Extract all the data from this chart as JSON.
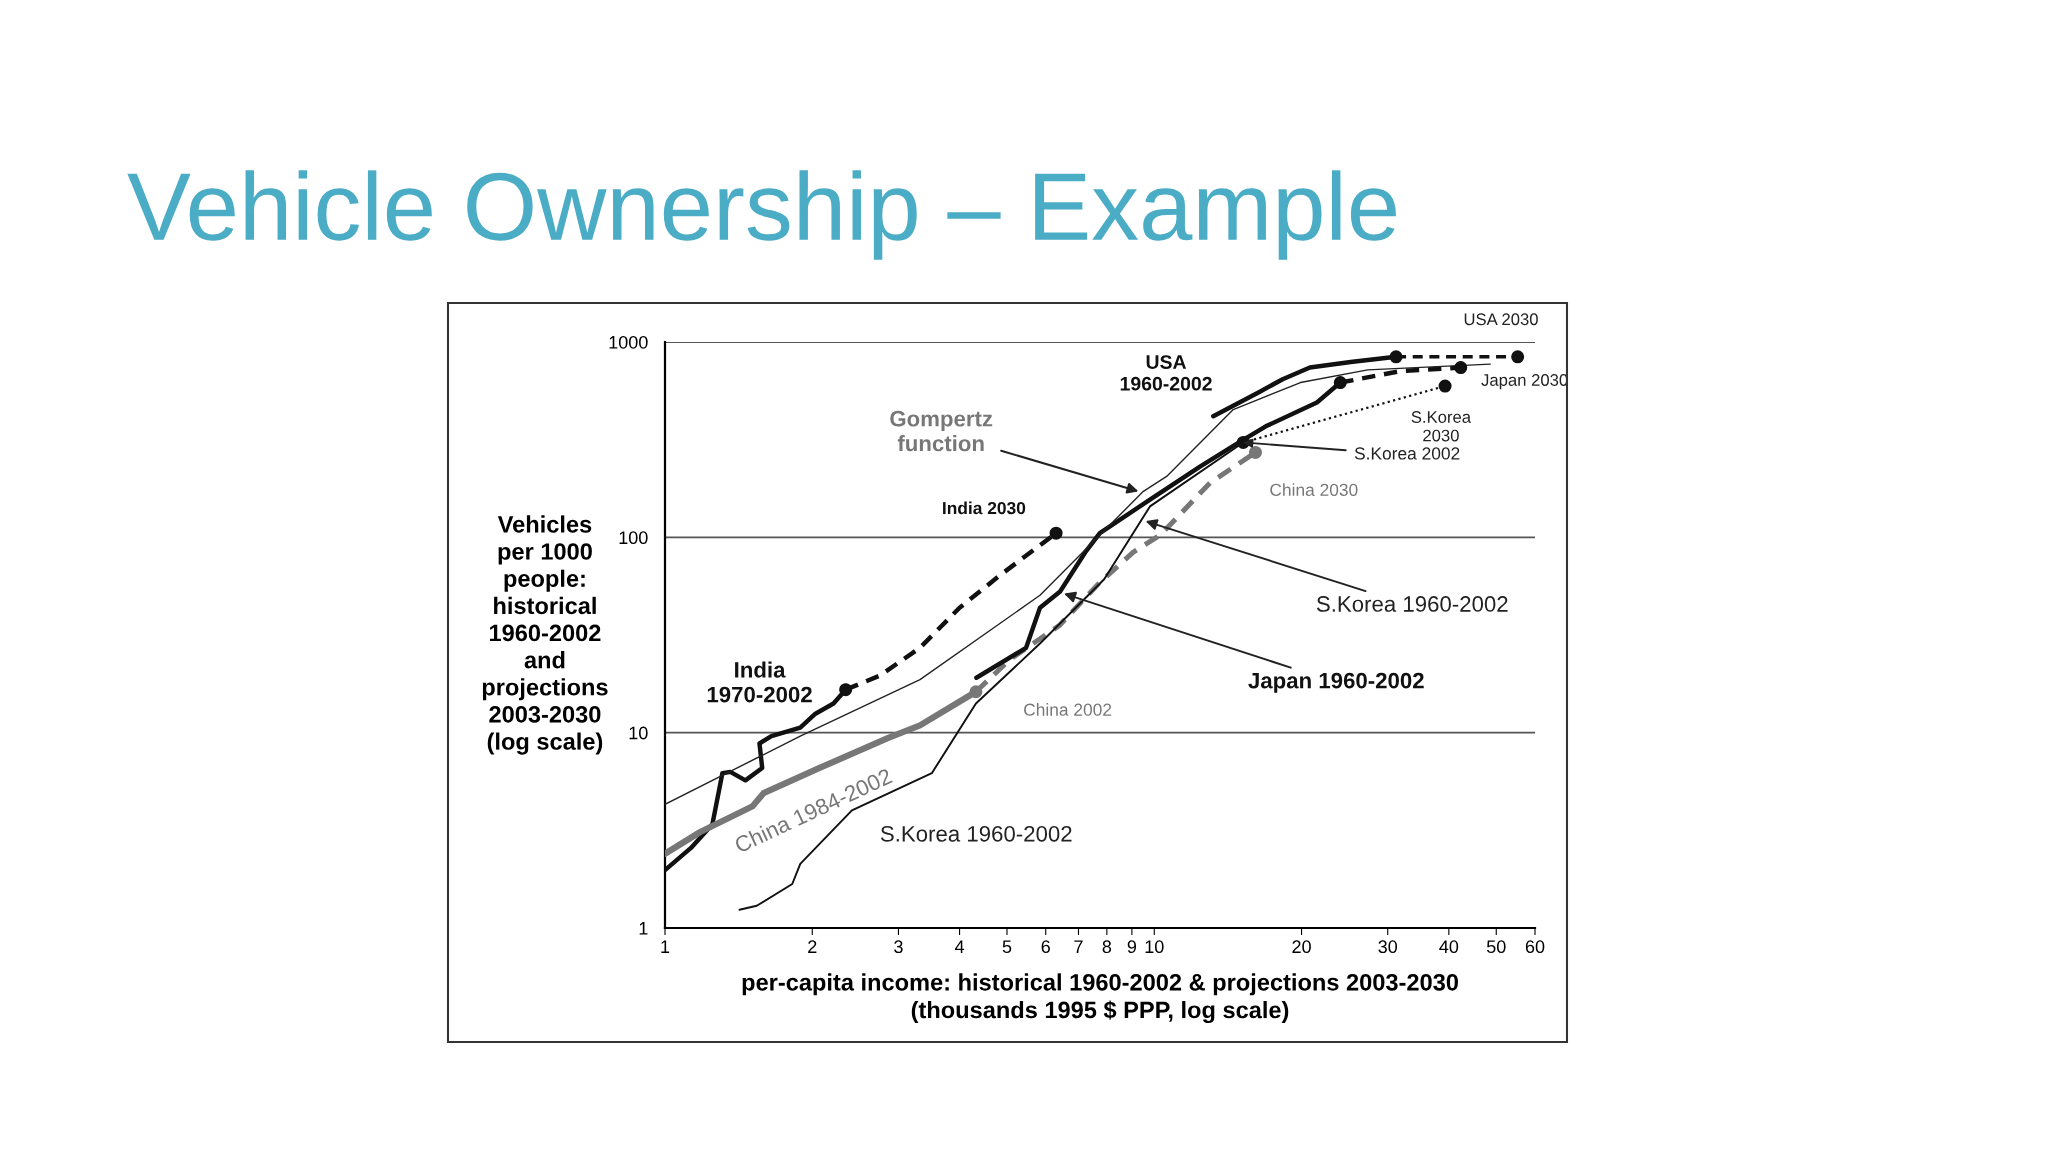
{
  "chart_data": {
    "type": "line",
    "title": "Vehicle Ownership – Example",
    "xlabel": "per-capita income: historical 1960-2002 & projections 2003-2030\n(thousands 1995 $ PPP, log scale)",
    "ylabel": "Vehicles\nper 1000\npeople:\nhistorical\n1960-2002\nand\nprojections\n2003-2030\n(log scale)",
    "log": "xy",
    "grid": "y",
    "xlim": [
      1,
      60
    ],
    "ylim": [
      1,
      1000
    ],
    "xticks": [
      1,
      2,
      3,
      4,
      5,
      6,
      7,
      8,
      9,
      10,
      20,
      30,
      40,
      50,
      60
    ],
    "yticks": [
      1,
      10,
      100,
      1000
    ],
    "series": [
      {
        "color": "#111111",
        "line_style": "solid",
        "x": [
          1.0,
          1.13,
          1.25,
          1.31,
          1.36,
          1.46,
          1.58,
          1.56,
          1.65,
          1.89,
          2.03,
          2.21,
          2.34
        ],
        "values": [
          1.98,
          2.57,
          3.4,
          6.2,
          6.3,
          5.7,
          6.6,
          8.8,
          9.6,
          10.6,
          12.5,
          14.1,
          16.6
        ]
      },
      {
        "color": "#111111",
        "line_style": "dashed",
        "x": [
          2.34,
          2.75,
          3.32,
          4.0,
          4.84,
          6.3
        ],
        "values": [
          16.6,
          19.6,
          27.2,
          43.6,
          64,
          105
        ]
      },
      {
        "color": "#777777",
        "line_style": "solid",
        "x": [
          1.0,
          1.18,
          1.51,
          1.59,
          2.07,
          2.86,
          3.32,
          4.32
        ],
        "values": [
          2.4,
          3.1,
          4.2,
          4.9,
          6.6,
          9.4,
          10.9,
          16.2
        ]
      },
      {
        "color": "#777777",
        "line_style": "dashed",
        "x": [
          4.32,
          5.07,
          6.4,
          7.74,
          9.06,
          10.3,
          13.0,
          16.1
        ],
        "values": [
          16.2,
          23.7,
          35.4,
          58.8,
          84,
          103,
          190,
          272
        ]
      },
      {
        "color": "#111111",
        "line_style": "solid",
        "x": [
          4.33,
          5.47,
          5.84,
          6.42,
          7.25,
          7.74,
          9.8,
          12.4,
          14.9,
          16.9,
          21.5,
          24.0
        ],
        "values": [
          19.1,
          27.2,
          43.6,
          52.8,
          84.8,
          105,
          156,
          230,
          306,
          370,
          490,
          620
        ]
      },
      {
        "color": "#111111",
        "line_style": "dashed",
        "x": [
          24.0,
          31.9,
          42.3
        ],
        "values": [
          620,
          710,
          740
        ]
      },
      {
        "color": "#111111",
        "line_style": "solid",
        "x": [
          13.2,
          16.4,
          18.3,
          20.8,
          25.2,
          31.2
        ],
        "values": [
          417,
          555,
          645,
          740,
          790,
          840
        ]
      },
      {
        "color": "#111111",
        "line_style": "dashed",
        "x": [
          31.2,
          55.3
        ],
        "values": [
          840,
          840
        ]
      },
      {
        "color": "#111111",
        "line_style": "solid",
        "x": [
          1.42,
          1.54,
          1.82,
          1.89,
          2.41,
          3.51,
          4.32,
          5.84,
          7.9,
          9.8,
          15.2
        ],
        "values": [
          1.24,
          1.3,
          1.68,
          2.13,
          4.0,
          6.2,
          14.1,
          28.6,
          61,
          144,
          306
        ]
      },
      {
        "color": "#111111",
        "line_style": "dotted",
        "x": [
          15.2,
          39.3
        ],
        "values": [
          306,
          595
        ]
      },
      {
        "color": "#222222",
        "line_style": "solid",
        "x": [
          1.0,
          1.89,
          3.32,
          5.84,
          9.5,
          10.6,
          14.5,
          19.9,
          27.3,
          48.6
        ],
        "values": [
          4.3,
          9.6,
          18.7,
          50.5,
          172,
          205,
          451,
          620,
          720,
          770
        ]
      },
      {
        "type": "scatter",
        "color": "#111111",
        "marker": "circle",
        "x": [
          2.34,
          6.3,
          24.0,
          31.2,
          55.3,
          42.3,
          15.2,
          39.3
        ],
        "values": [
          16.6,
          105,
          620,
          840,
          840,
          740,
          306,
          595
        ]
      },
      {
        "type": "scatter",
        "color": "#777777",
        "marker": "circle",
        "x": [
          4.32,
          16.1
        ],
        "values": [
          16.2,
          272
        ]
      }
    ],
    "annotations": [
      {
        "text": "USA 2030",
        "x": 55.3,
        "y": 840
      },
      {
        "text": "USA\n1960-2002",
        "x": 13.2,
        "y": 417
      },
      {
        "text": "Japan 2030",
        "x": 42.3,
        "y": 740
      },
      {
        "text": "S.Korea\n2030",
        "x": 39.3,
        "y": 595
      },
      {
        "text": "S.Korea 2002",
        "x": 15.2,
        "y": 306
      },
      {
        "text": "China 2030",
        "x": 16.1,
        "y": 272
      },
      {
        "text": "S.Korea 1960-2002",
        "x": 9.6,
        "y": 121
      },
      {
        "text": "Japan 1960-2002",
        "x": 6.54,
        "y": 51.5
      },
      {
        "text": "China 2002",
        "x": 4.32,
        "y": 16.2
      },
      {
        "text": "India 2030",
        "x": 6.3,
        "y": 105
      },
      {
        "text": "India\n1970-2002",
        "x": 2.34,
        "y": 16.6
      },
      {
        "text": "China 1984-2002",
        "x": 2.07,
        "y": 6.6
      },
      {
        "text": "S.Korea 1960-2002",
        "x": 3.51,
        "y": 6.2
      },
      {
        "text": "Gompertz\nfunction",
        "x": 9.28,
        "y": 172
      }
    ]
  }
}
